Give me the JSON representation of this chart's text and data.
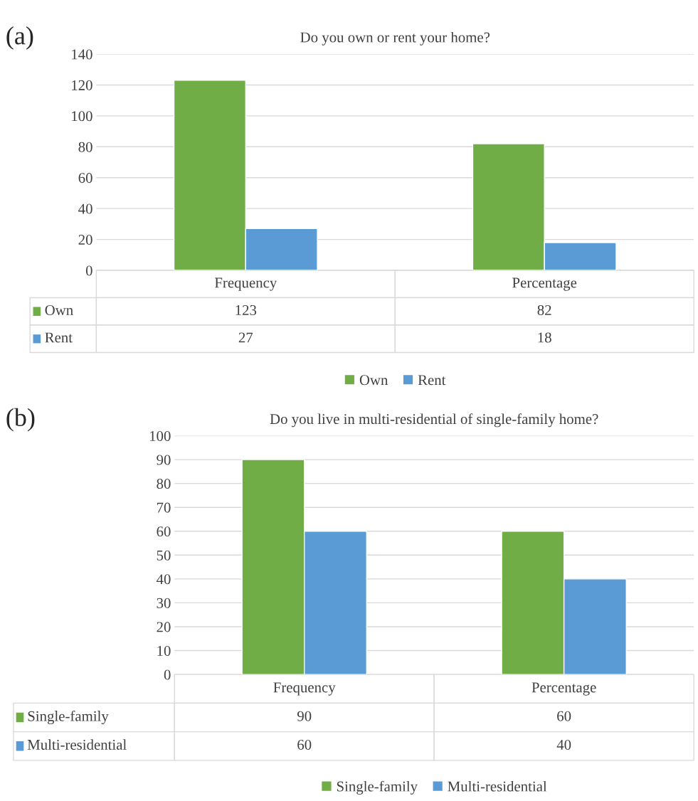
{
  "chart_data": [
    {
      "type": "bar",
      "title": "Do you own or rent your home?",
      "annotations": [
        "(a)"
      ],
      "categories": [
        "Frequency",
        "Percentage"
      ],
      "series": [
        {
          "name": "Own",
          "color": "#70ad47",
          "values": [
            123,
            82
          ]
        },
        {
          "name": "Rent",
          "color": "#5b9bd5",
          "values": [
            27,
            18
          ]
        }
      ],
      "ylim": [
        0,
        140
      ],
      "yticks": [
        0,
        20,
        40,
        60,
        80,
        100,
        120,
        140
      ],
      "grid": "y",
      "legend": "bottom",
      "data_labels": true
    },
    {
      "type": "bar",
      "title": "Do you live in multi-residential of single-family home?",
      "annotations": [
        "(b)"
      ],
      "categories": [
        "Frequency",
        "Percentage"
      ],
      "series": [
        {
          "name": "Single-family",
          "color": "#70ad47",
          "values": [
            90,
            60
          ]
        },
        {
          "name": "Multi-residential",
          "color": "#5b9bd5",
          "values": [
            60,
            40
          ]
        }
      ],
      "ylim": [
        0,
        100
      ],
      "yticks": [
        0,
        10,
        20,
        30,
        40,
        50,
        60,
        70,
        80,
        90,
        100
      ],
      "grid": "y",
      "legend": "bottom",
      "data_labels": true
    }
  ]
}
